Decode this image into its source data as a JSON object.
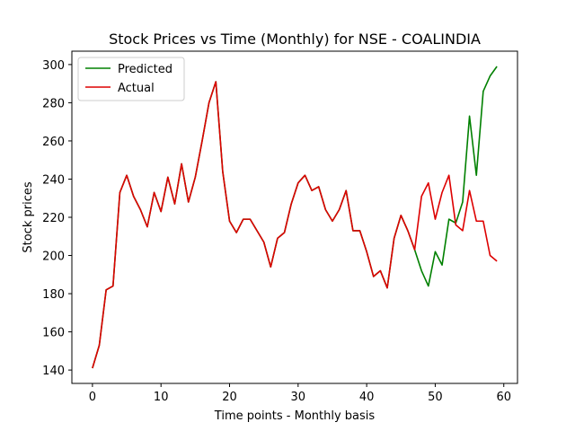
{
  "chart_data": {
    "type": "line",
    "title": "Stock Prices vs Time (Monthly) for NSE - COALINDIA",
    "xlabel": "Time points - Monthly basis",
    "ylabel": "Stock prices",
    "xlim": [
      -3,
      62
    ],
    "ylim": [
      133,
      307
    ],
    "xticks": [
      0,
      10,
      20,
      30,
      40,
      50,
      60
    ],
    "yticks": [
      140,
      160,
      180,
      200,
      220,
      240,
      260,
      280,
      300
    ],
    "grid": false,
    "legend_position": "top-left",
    "series": [
      {
        "name": "Predicted",
        "color": "#008000",
        "x": [
          0,
          1,
          2,
          3,
          4,
          5,
          6,
          7,
          8,
          9,
          10,
          11,
          12,
          13,
          14,
          15,
          16,
          17,
          18,
          19,
          20,
          21,
          22,
          23,
          24,
          25,
          26,
          27,
          28,
          29,
          30,
          31,
          32,
          33,
          34,
          35,
          36,
          37,
          38,
          39,
          40,
          41,
          42,
          43,
          44,
          45,
          46,
          47,
          48,
          49,
          50,
          51,
          52,
          53,
          54,
          55,
          56,
          57,
          58,
          59
        ],
        "values": [
          141,
          153,
          182,
          184,
          233,
          242,
          231,
          224,
          215,
          233,
          223,
          241,
          227,
          248,
          228,
          241,
          260,
          280,
          291,
          244,
          218,
          212,
          219,
          219,
          213,
          207,
          194,
          209,
          212,
          227,
          238,
          242,
          234,
          236,
          224,
          218,
          224,
          234,
          213,
          213,
          202,
          189,
          192,
          183,
          209,
          221,
          213,
          203,
          192,
          184,
          202,
          195,
          219,
          217,
          228,
          273,
          242,
          286,
          294,
          299
        ]
      },
      {
        "name": "Actual",
        "color": "#dd0000",
        "x": [
          0,
          1,
          2,
          3,
          4,
          5,
          6,
          7,
          8,
          9,
          10,
          11,
          12,
          13,
          14,
          15,
          16,
          17,
          18,
          19,
          20,
          21,
          22,
          23,
          24,
          25,
          26,
          27,
          28,
          29,
          30,
          31,
          32,
          33,
          34,
          35,
          36,
          37,
          38,
          39,
          40,
          41,
          42,
          43,
          44,
          45,
          46,
          47,
          48,
          49,
          50,
          51,
          52,
          53,
          54,
          55,
          56,
          57,
          58,
          59
        ],
        "values": [
          141,
          153,
          182,
          184,
          233,
          242,
          231,
          224,
          215,
          233,
          223,
          241,
          227,
          248,
          228,
          241,
          260,
          280,
          291,
          244,
          218,
          212,
          219,
          219,
          213,
          207,
          194,
          209,
          212,
          227,
          238,
          242,
          234,
          236,
          224,
          218,
          224,
          234,
          213,
          213,
          202,
          189,
          192,
          183,
          209,
          221,
          213,
          203,
          231,
          238,
          219,
          233,
          242,
          216,
          213,
          234,
          218,
          218,
          200,
          197
        ]
      }
    ]
  }
}
